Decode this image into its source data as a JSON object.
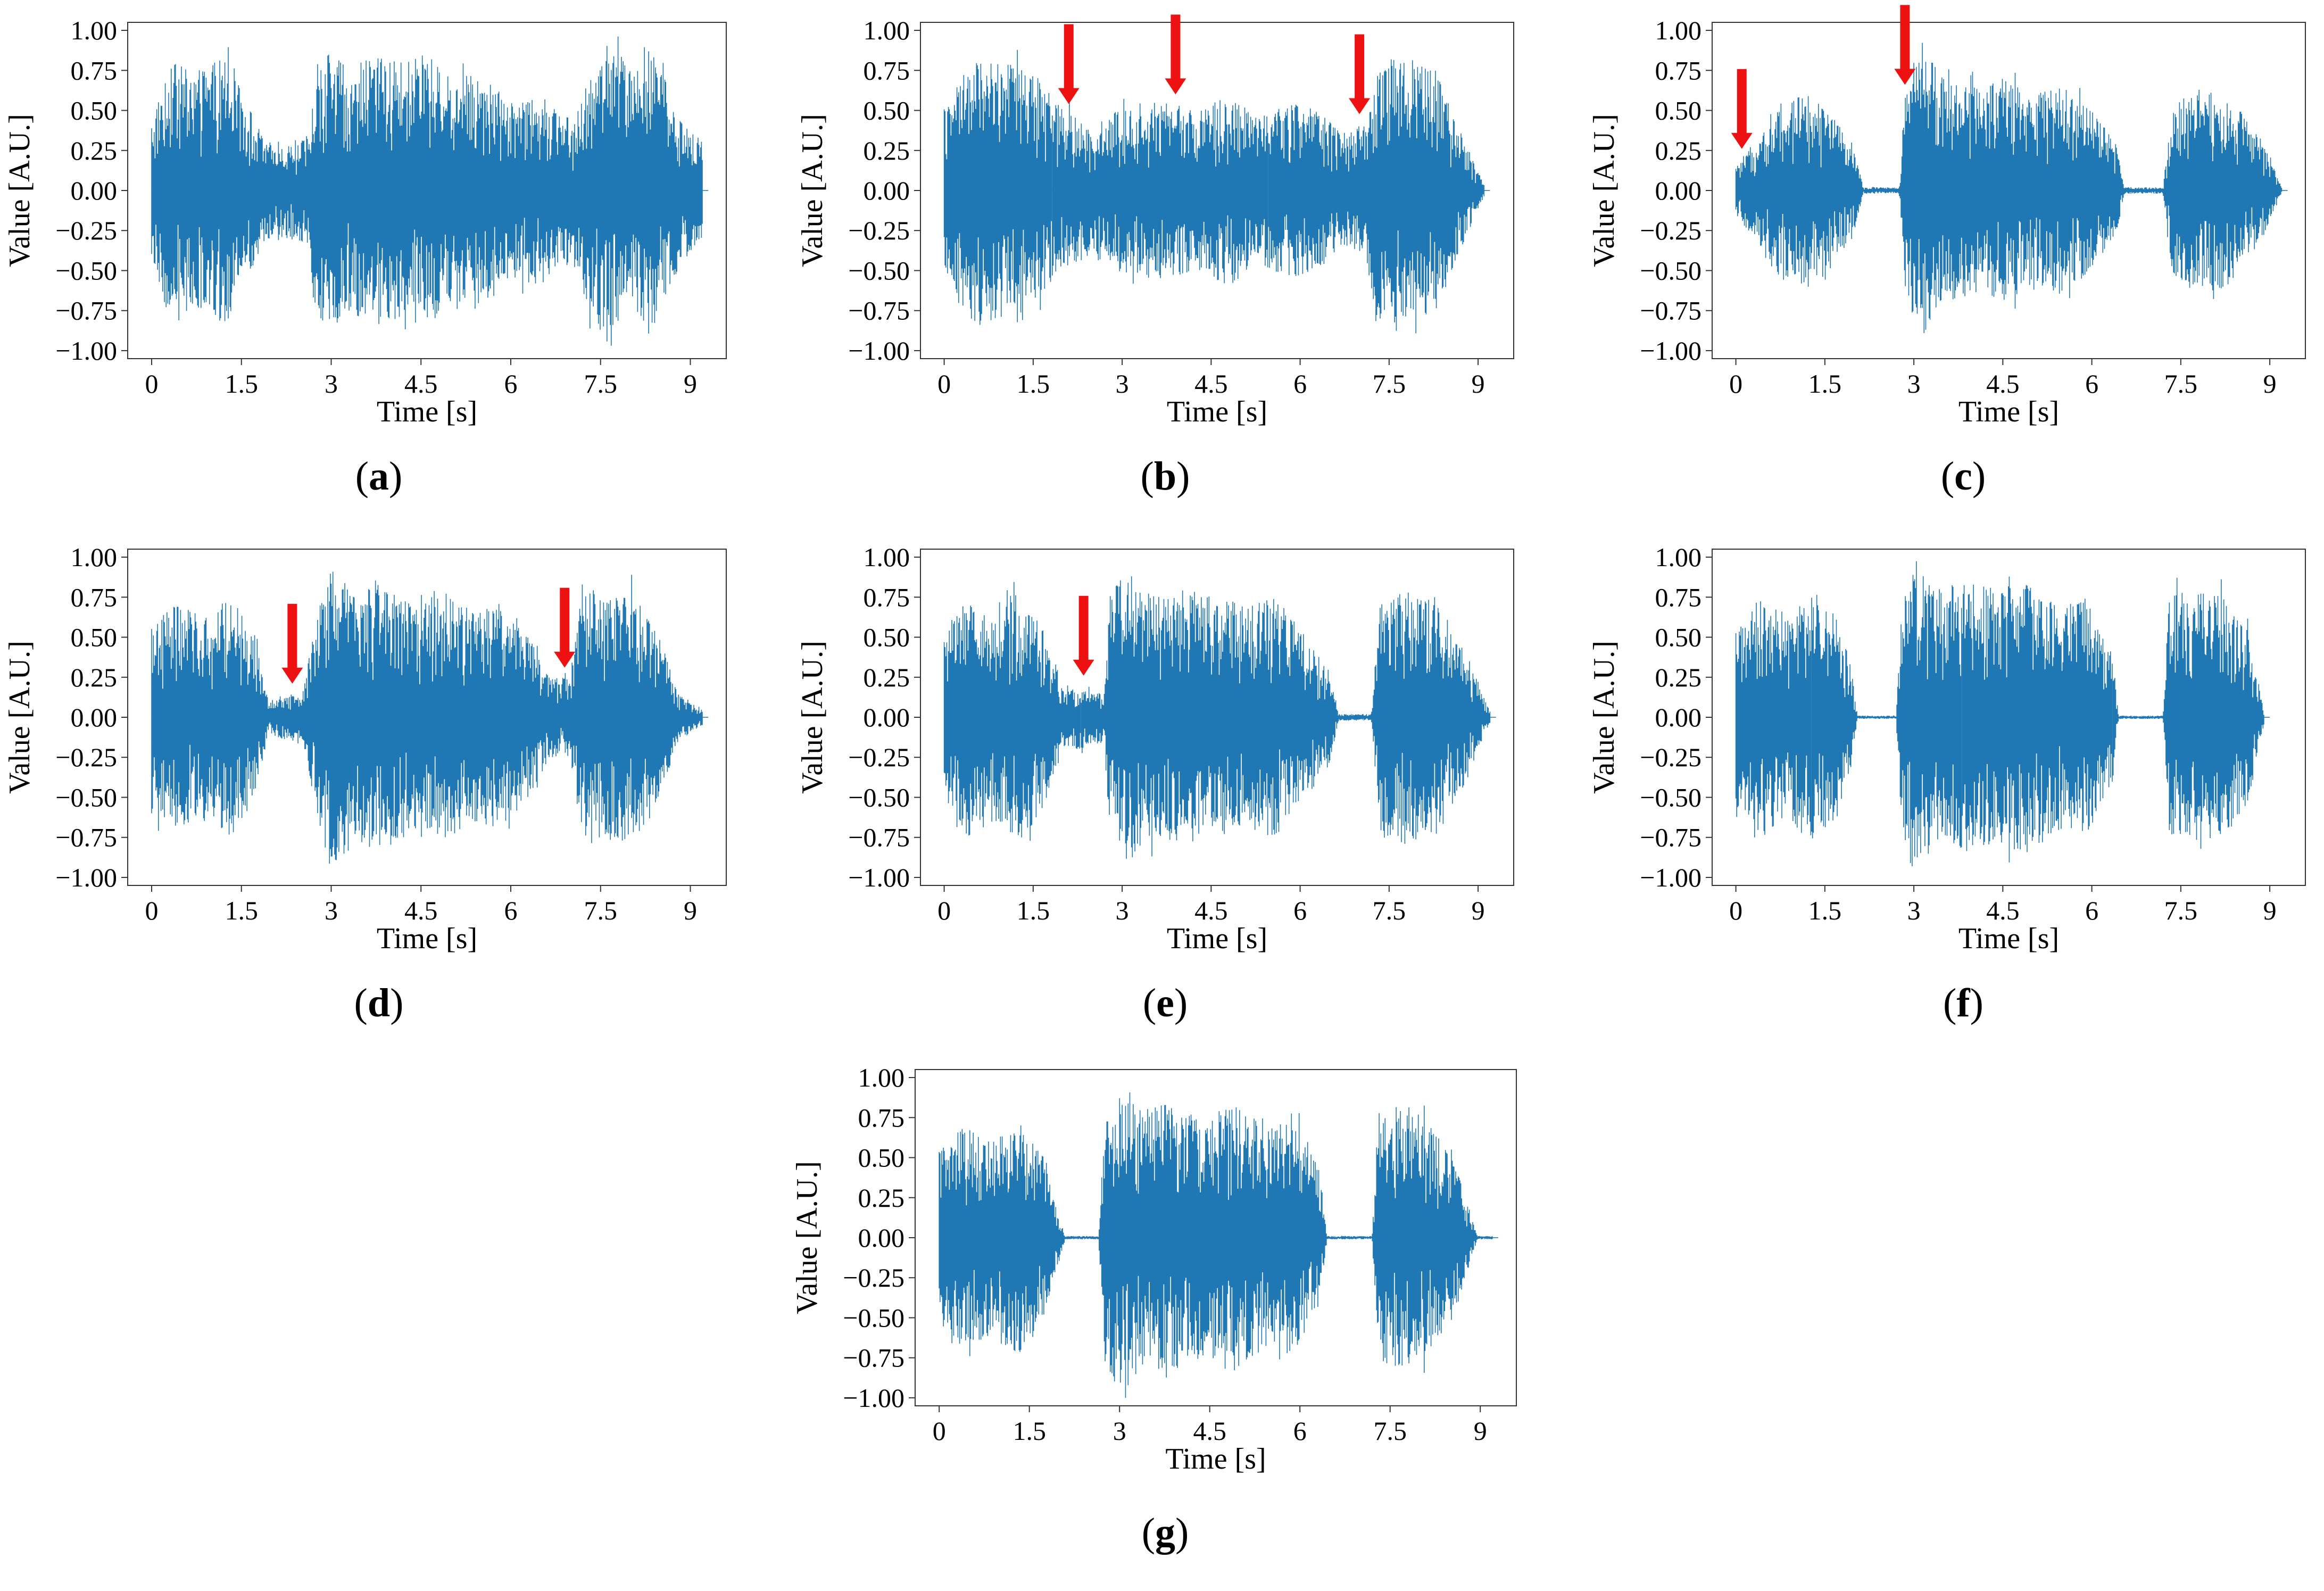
{
  "figure": {
    "panel_count": 7,
    "arrow_color": "#ee1111",
    "series_color": "#1f77b4"
  },
  "chart_data": [
    {
      "type": "line",
      "panel": "a",
      "caption": "a",
      "xlabel": "Time [s]",
      "ylabel": "Value [A.U.]",
      "xlim": [
        -0.4,
        9.6
      ],
      "ylim": [
        -1.05,
        1.05
      ],
      "xticks": [
        0,
        1.5,
        3,
        4.5,
        6,
        7.5,
        9
      ],
      "xtick_labels": [
        "0",
        "1.5",
        "3",
        "4.5",
        "6",
        "7.5",
        "9"
      ],
      "yticks": [
        1.0,
        0.75,
        0.5,
        0.25,
        0.0,
        -0.25,
        -0.5,
        -0.75,
        -1.0
      ],
      "ytick_labels": [
        "1.00",
        "0.75",
        "0.50",
        "0.25",
        "0.00",
        "−0.25",
        "−0.50",
        "−0.75",
        "−1.00"
      ],
      "duration_s": 9.2,
      "envelope": [
        [
          0,
          0.45
        ],
        [
          0.3,
          0.8
        ],
        [
          0.8,
          0.75
        ],
        [
          1.2,
          0.85
        ],
        [
          1.6,
          0.55
        ],
        [
          1.9,
          0.3
        ],
        [
          2.3,
          0.3
        ],
        [
          2.65,
          0.35
        ],
        [
          2.7,
          0.75
        ],
        [
          2.9,
          0.9
        ],
        [
          3.3,
          0.75
        ],
        [
          3.7,
          0.85
        ],
        [
          4.2,
          0.8
        ],
        [
          4.6,
          0.85
        ],
        [
          5.0,
          0.7
        ],
        [
          5.5,
          0.75
        ],
        [
          6.0,
          0.55
        ],
        [
          6.5,
          0.6
        ],
        [
          7.0,
          0.4
        ],
        [
          7.3,
          0.75
        ],
        [
          7.6,
          0.9
        ],
        [
          8.0,
          0.8
        ],
        [
          8.4,
          0.85
        ],
        [
          8.8,
          0.5
        ],
        [
          9.2,
          0.3
        ]
      ],
      "arrows_at_s": []
    },
    {
      "type": "line",
      "panel": "b",
      "caption": "b",
      "xlabel": "Time [s]",
      "ylabel": "Value [A.U.]",
      "xlim": [
        -0.4,
        9.6
      ],
      "ylim": [
        -1.05,
        1.05
      ],
      "xticks": [
        0,
        1.5,
        3,
        4.5,
        6,
        7.5,
        9
      ],
      "xtick_labels": [
        "0",
        "1.5",
        "3",
        "4.5",
        "6",
        "7.5",
        "9"
      ],
      "yticks": [
        1.0,
        0.75,
        0.5,
        0.25,
        0.0,
        -0.25,
        -0.5,
        -0.75,
        -1.0
      ],
      "ytick_labels": [
        "1.00",
        "0.75",
        "0.50",
        "0.25",
        "0.00",
        "−0.25",
        "−0.50",
        "−0.75",
        "−1.00"
      ],
      "duration_s": 9.1,
      "envelope": [
        [
          0,
          0.5
        ],
        [
          0.5,
          0.85
        ],
        [
          1.0,
          0.8
        ],
        [
          1.5,
          0.75
        ],
        [
          2.0,
          0.5
        ],
        [
          2.5,
          0.4
        ],
        [
          2.9,
          0.5
        ],
        [
          3.3,
          0.55
        ],
        [
          3.8,
          0.55
        ],
        [
          4.3,
          0.5
        ],
        [
          4.8,
          0.6
        ],
        [
          5.3,
          0.45
        ],
        [
          5.8,
          0.55
        ],
        [
          6.3,
          0.5
        ],
        [
          6.8,
          0.35
        ],
        [
          7.1,
          0.45
        ],
        [
          7.3,
          0.8
        ],
        [
          7.8,
          0.85
        ],
        [
          8.3,
          0.75
        ],
        [
          8.8,
          0.3
        ],
        [
          9.1,
          0.05
        ]
      ],
      "arrows_at_s": [
        2.1,
        3.9,
        7.0
      ]
    },
    {
      "type": "line",
      "panel": "c",
      "caption": "c",
      "xlabel": "Time [s]",
      "ylabel": "Value [A.U.]",
      "xlim": [
        -0.4,
        9.6
      ],
      "ylim": [
        -1.05,
        1.05
      ],
      "xticks": [
        0,
        1.5,
        3,
        4.5,
        6,
        7.5,
        9
      ],
      "xtick_labels": [
        "0",
        "1.5",
        "3",
        "4.5",
        "6",
        "7.5",
        "9"
      ],
      "yticks": [
        1.0,
        0.75,
        0.5,
        0.25,
        0.0,
        -0.25,
        -0.5,
        -0.75,
        -1.0
      ],
      "ytick_labels": [
        "1.00",
        "0.75",
        "0.50",
        "0.25",
        "0.00",
        "−0.25",
        "−0.50",
        "−0.75",
        "−1.00"
      ],
      "duration_s": 9.2,
      "envelope": [
        [
          0,
          0.15
        ],
        [
          0.3,
          0.3
        ],
        [
          0.7,
          0.55
        ],
        [
          1.1,
          0.6
        ],
        [
          1.6,
          0.5
        ],
        [
          2.0,
          0.25
        ],
        [
          2.15,
          0.02
        ],
        [
          2.75,
          0.02
        ],
        [
          2.85,
          0.6
        ],
        [
          3.1,
          0.95
        ],
        [
          3.5,
          0.7
        ],
        [
          4.0,
          0.65
        ],
        [
          4.5,
          0.7
        ],
        [
          5.0,
          0.6
        ],
        [
          5.5,
          0.65
        ],
        [
          6.0,
          0.5
        ],
        [
          6.4,
          0.3
        ],
        [
          6.55,
          0.02
        ],
        [
          7.2,
          0.02
        ],
        [
          7.35,
          0.55
        ],
        [
          7.8,
          0.65
        ],
        [
          8.3,
          0.6
        ],
        [
          8.9,
          0.3
        ],
        [
          9.2,
          0.02
        ]
      ],
      "arrows_at_s": [
        0.1,
        2.85
      ]
    },
    {
      "type": "line",
      "panel": "d",
      "caption": "d",
      "xlabel": "Time [s]",
      "ylabel": "Value [A.U.]",
      "xlim": [
        -0.4,
        9.6
      ],
      "ylim": [
        -1.05,
        1.05
      ],
      "xticks": [
        0,
        1.5,
        3,
        4.5,
        6,
        7.5,
        9
      ],
      "xtick_labels": [
        "0",
        "1.5",
        "3",
        "4.5",
        "6",
        "7.5",
        "9"
      ],
      "yticks": [
        1.0,
        0.75,
        0.5,
        0.25,
        0.0,
        -0.25,
        -0.5,
        -0.75,
        -1.0
      ],
      "ytick_labels": [
        "1.00",
        "0.75",
        "0.50",
        "0.25",
        "0.00",
        "−0.25",
        "−0.50",
        "−0.75",
        "−1.00"
      ],
      "duration_s": 9.2,
      "envelope": [
        [
          0,
          0.6
        ],
        [
          0.4,
          0.7
        ],
        [
          0.9,
          0.65
        ],
        [
          1.3,
          0.75
        ],
        [
          1.7,
          0.55
        ],
        [
          1.95,
          0.1
        ],
        [
          2.2,
          0.15
        ],
        [
          2.5,
          0.15
        ],
        [
          2.7,
          0.5
        ],
        [
          2.95,
          0.95
        ],
        [
          3.4,
          0.8
        ],
        [
          3.9,
          0.85
        ],
        [
          4.4,
          0.7
        ],
        [
          4.9,
          0.8
        ],
        [
          5.4,
          0.65
        ],
        [
          5.9,
          0.75
        ],
        [
          6.3,
          0.5
        ],
        [
          6.65,
          0.25
        ],
        [
          7.0,
          0.25
        ],
        [
          7.2,
          0.85
        ],
        [
          7.6,
          0.75
        ],
        [
          8.0,
          0.8
        ],
        [
          8.4,
          0.6
        ],
        [
          8.8,
          0.15
        ],
        [
          9.2,
          0.05
        ]
      ],
      "arrows_at_s": [
        2.35,
        6.9
      ]
    },
    {
      "type": "line",
      "panel": "e",
      "caption": "e",
      "xlabel": "Time [s]",
      "ylabel": "Value [A.U.]",
      "xlim": [
        -0.4,
        9.6
      ],
      "ylim": [
        -1.05,
        1.05
      ],
      "xticks": [
        0,
        1.5,
        3,
        4.5,
        6,
        7.5,
        9
      ],
      "xtick_labels": [
        "0",
        "1.5",
        "3",
        "4.5",
        "6",
        "7.5",
        "9"
      ],
      "yticks": [
        1.0,
        0.75,
        0.5,
        0.25,
        0.0,
        -0.25,
        -0.5,
        -0.75,
        -1.0
      ],
      "ytick_labels": [
        "1.00",
        "0.75",
        "0.50",
        "0.25",
        "0.00",
        "−0.25",
        "−0.50",
        "−0.75",
        "−1.00"
      ],
      "duration_s": 9.2,
      "envelope": [
        [
          0,
          0.5
        ],
        [
          0.4,
          0.75
        ],
        [
          0.9,
          0.65
        ],
        [
          1.3,
          0.8
        ],
        [
          1.7,
          0.55
        ],
        [
          2.0,
          0.2
        ],
        [
          2.4,
          0.2
        ],
        [
          2.7,
          0.15
        ],
        [
          2.8,
          0.8
        ],
        [
          3.1,
          0.9
        ],
        [
          3.6,
          0.75
        ],
        [
          4.1,
          0.8
        ],
        [
          4.6,
          0.75
        ],
        [
          5.1,
          0.7
        ],
        [
          5.6,
          0.75
        ],
        [
          6.1,
          0.5
        ],
        [
          6.5,
          0.3
        ],
        [
          6.65,
          0.02
        ],
        [
          7.2,
          0.02
        ],
        [
          7.35,
          0.75
        ],
        [
          7.8,
          0.8
        ],
        [
          8.3,
          0.75
        ],
        [
          8.8,
          0.4
        ],
        [
          9.2,
          0.05
        ]
      ],
      "arrows_at_s": [
        2.35
      ]
    },
    {
      "type": "line",
      "panel": "f",
      "caption": "f",
      "xlabel": "Time [s]",
      "ylabel": "Value [A.U.]",
      "xlim": [
        -0.4,
        9.6
      ],
      "ylim": [
        -1.05,
        1.05
      ],
      "xticks": [
        0,
        1.5,
        3,
        4.5,
        6,
        7.5,
        9
      ],
      "xtick_labels": [
        "0",
        "1.5",
        "3",
        "4.5",
        "6",
        "7.5",
        "9"
      ],
      "yticks": [
        1.0,
        0.75,
        0.5,
        0.25,
        0.0,
        -0.25,
        -0.5,
        -0.75,
        -1.0
      ],
      "ytick_labels": [
        "1.00",
        "0.75",
        "0.50",
        "0.25",
        "0.00",
        "−0.25",
        "−0.50",
        "−0.75",
        "−1.00"
      ],
      "duration_s": 8.9,
      "envelope": [
        [
          0,
          0.55
        ],
        [
          0.4,
          0.75
        ],
        [
          0.9,
          0.65
        ],
        [
          1.3,
          0.8
        ],
        [
          1.7,
          0.65
        ],
        [
          1.95,
          0.3
        ],
        [
          2.05,
          0.01
        ],
        [
          2.7,
          0.01
        ],
        [
          2.8,
          0.7
        ],
        [
          3.0,
          1.0
        ],
        [
          3.4,
          0.8
        ],
        [
          3.9,
          0.85
        ],
        [
          4.4,
          0.8
        ],
        [
          4.9,
          0.85
        ],
        [
          5.4,
          0.7
        ],
        [
          5.9,
          0.75
        ],
        [
          6.35,
          0.4
        ],
        [
          6.45,
          0.01
        ],
        [
          7.2,
          0.01
        ],
        [
          7.3,
          0.75
        ],
        [
          7.7,
          0.8
        ],
        [
          8.2,
          0.75
        ],
        [
          8.6,
          0.6
        ],
        [
          8.9,
          0.05
        ]
      ],
      "arrows_at_s": []
    },
    {
      "type": "line",
      "panel": "g",
      "caption": "g",
      "xlabel": "Time [s]",
      "ylabel": "Value [A.U.]",
      "xlim": [
        -0.4,
        9.6
      ],
      "ylim": [
        -1.05,
        1.05
      ],
      "xticks": [
        0,
        1.5,
        3,
        4.5,
        6,
        7.5,
        9
      ],
      "xtick_labels": [
        "0",
        "1.5",
        "3",
        "4.5",
        "6",
        "7.5",
        "9"
      ],
      "yticks": [
        1.0,
        0.75,
        0.5,
        0.25,
        0.0,
        -0.25,
        -0.5,
        -0.75,
        -1.0
      ],
      "ytick_labels": [
        "1.00",
        "0.75",
        "0.50",
        "0.25",
        "0.00",
        "−0.25",
        "−0.50",
        "−0.75",
        "−1.00"
      ],
      "duration_s": 9.2,
      "envelope": [
        [
          0,
          0.55
        ],
        [
          0.4,
          0.7
        ],
        [
          0.9,
          0.6
        ],
        [
          1.3,
          0.75
        ],
        [
          1.7,
          0.55
        ],
        [
          1.95,
          0.2
        ],
        [
          2.1,
          0.01
        ],
        [
          2.65,
          0.01
        ],
        [
          2.75,
          0.7
        ],
        [
          3.0,
          1.0
        ],
        [
          3.4,
          0.8
        ],
        [
          3.9,
          0.85
        ],
        [
          4.4,
          0.75
        ],
        [
          4.9,
          0.85
        ],
        [
          5.4,
          0.7
        ],
        [
          5.9,
          0.75
        ],
        [
          6.35,
          0.4
        ],
        [
          6.45,
          0.01
        ],
        [
          7.2,
          0.01
        ],
        [
          7.3,
          0.75
        ],
        [
          7.7,
          0.85
        ],
        [
          8.2,
          0.7
        ],
        [
          8.6,
          0.45
        ],
        [
          8.95,
          0.01
        ],
        [
          9.2,
          0.01
        ]
      ],
      "arrows_at_s": []
    }
  ]
}
